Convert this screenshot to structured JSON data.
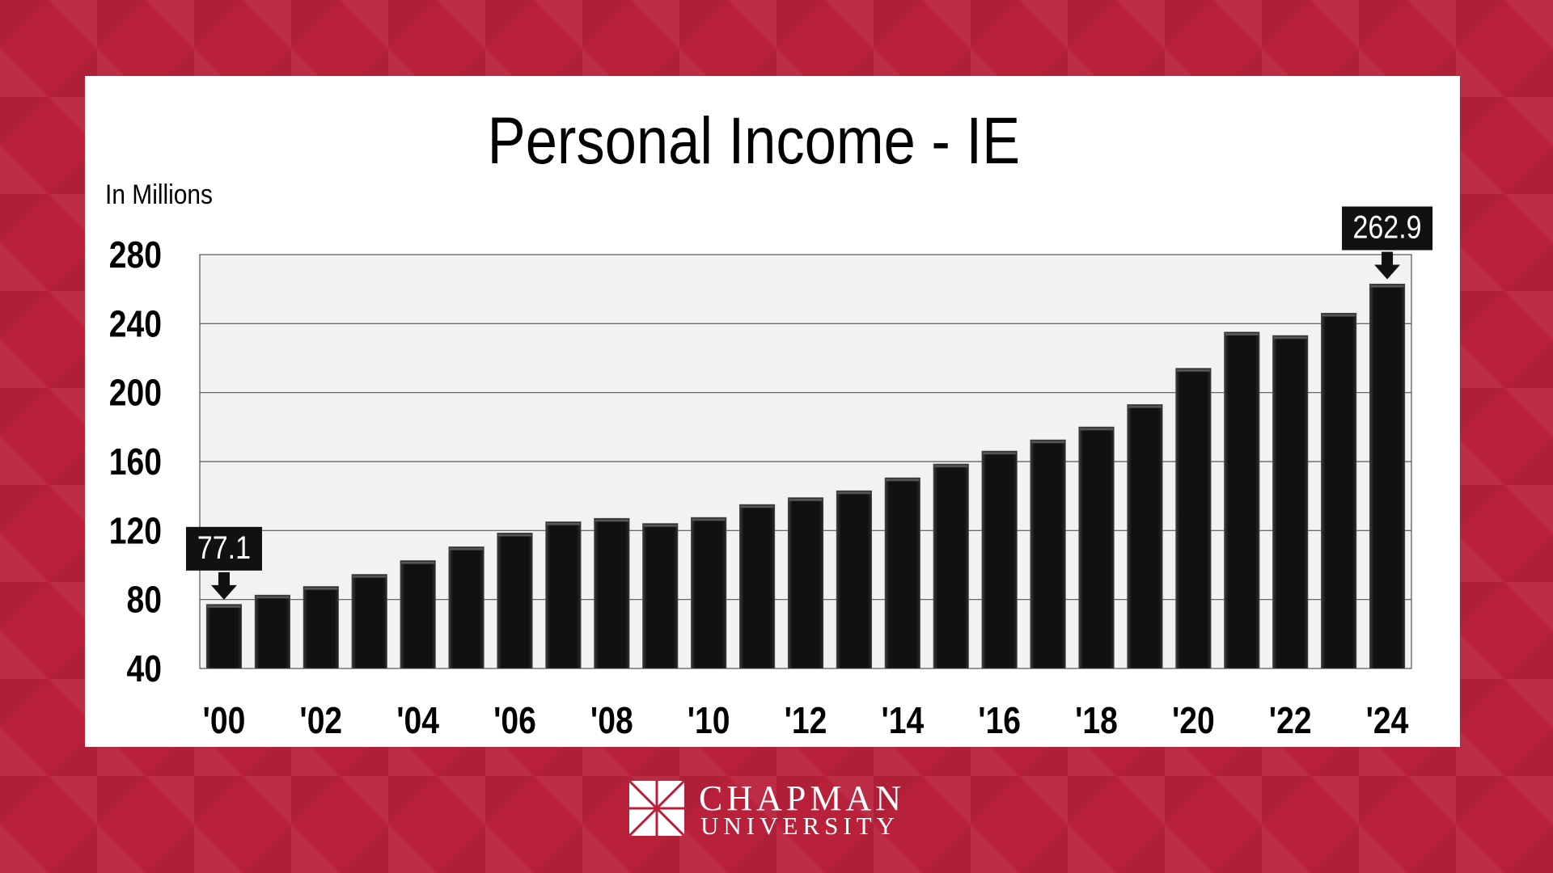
{
  "chart_data": {
    "type": "bar",
    "title": "Personal Income - IE",
    "units_label": "In Millions",
    "categories": [
      "'00",
      "'01",
      "'02",
      "'03",
      "'04",
      "'05",
      "'06",
      "'07",
      "'08",
      "'09",
      "'10",
      "'11",
      "'12",
      "'13",
      "'14",
      "'15",
      "'16",
      "'17",
      "'18",
      "'19",
      "'20",
      "'21",
      "'22",
      "'23",
      "'24"
    ],
    "tick_labels": [
      "'00",
      "",
      "'02",
      "",
      "'04",
      "",
      "'06",
      "",
      "'08",
      "",
      "'10",
      "",
      "'12",
      "",
      "'14",
      "",
      "'16",
      "",
      "'18",
      "",
      "'20",
      "",
      "'22",
      "",
      "'24"
    ],
    "values": [
      77.1,
      82.5,
      87.5,
      94.5,
      102.5,
      110.5,
      118.5,
      125,
      127,
      124,
      127.5,
      135,
      139,
      143,
      150.5,
      158.5,
      166,
      172.5,
      180,
      193,
      214,
      235,
      233,
      246,
      262.9
    ],
    "ylim": [
      40,
      280
    ],
    "yticks": [
      40,
      80,
      120,
      160,
      200,
      240,
      280
    ],
    "grid": true,
    "annotations": [
      {
        "category": "'00",
        "label": "77.1"
      },
      {
        "category": "'24",
        "label": "262.9"
      }
    ],
    "bar_color": "#000000",
    "plot_background": "#f2f2f2"
  },
  "footer": {
    "logo_line1": "CHAPMAN",
    "logo_line2": "UNIVERSITY"
  },
  "colors": {
    "background": "#b9213b",
    "panel": "#ffffff"
  }
}
